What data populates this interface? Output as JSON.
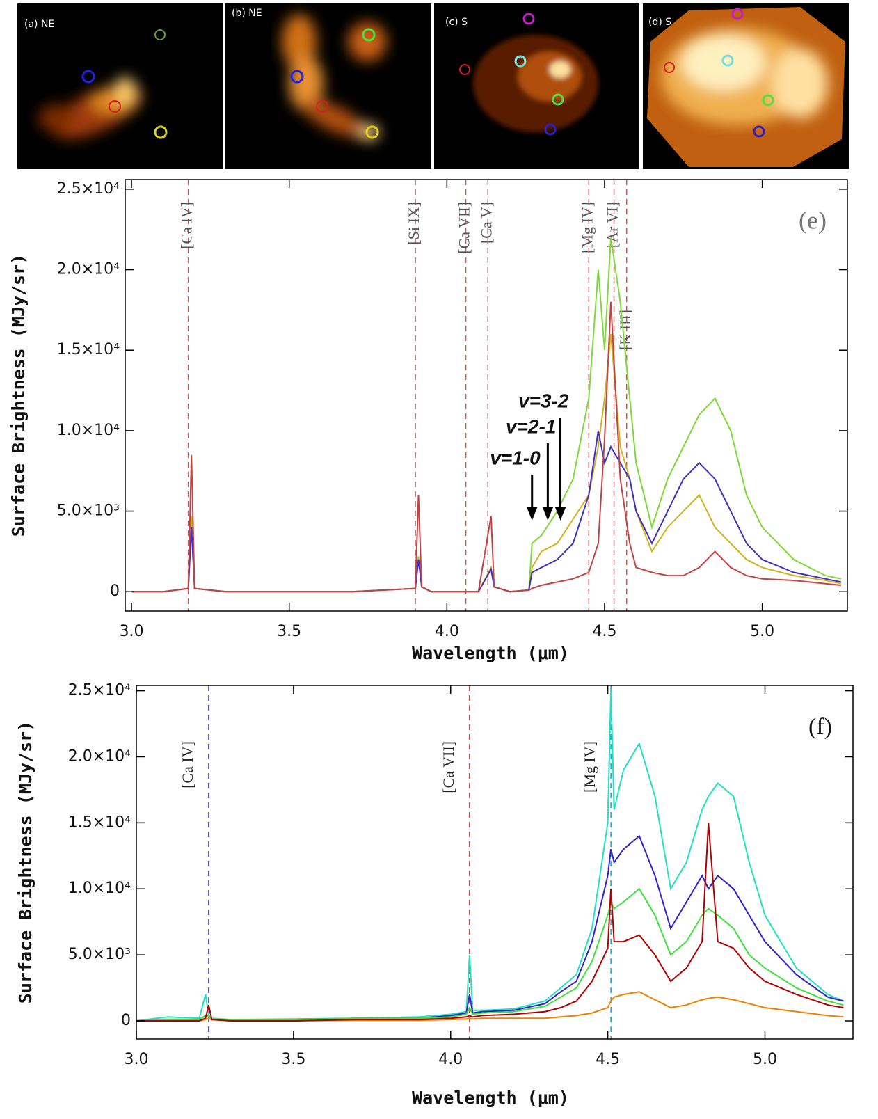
{
  "panels": [
    {
      "label": "(a) NE"
    },
    {
      "label": "(b) NE"
    },
    {
      "label": "(c) S"
    },
    {
      "label": "(d) S"
    }
  ],
  "chart_data": [
    {
      "type": "line",
      "panel_label": "(e)",
      "x_label": "Wavelength (μm)",
      "y_label": "Surface Brightness (MJy/sr)",
      "xlim": [
        2.98,
        5.27
      ],
      "ylim": [
        -1200,
        25600
      ],
      "xticks": [
        {
          "value": 3,
          "label": "3.0"
        },
        3.5,
        {
          "value": 4,
          "label": "4.0"
        },
        4.5,
        {
          "value": 5,
          "label": "5.0"
        }
      ],
      "yticks": [
        0,
        {
          "value": 5000,
          "label": "5.0×10³"
        },
        {
          "value": 10000,
          "label": "1.0×10⁴"
        },
        {
          "value": 15000,
          "label": "1.5×10⁴"
        },
        {
          "value": 20000,
          "label": "2.0×10⁴"
        },
        {
          "value": 25000,
          "label": "2.5×10⁴"
        }
      ],
      "x": [
        3.0,
        3.1,
        3.18,
        3.19,
        3.2,
        3.3,
        3.5,
        3.7,
        3.9,
        3.91,
        3.92,
        3.95,
        4.0,
        4.1,
        4.14,
        4.15,
        4.2,
        4.26,
        4.27,
        4.3,
        4.35,
        4.4,
        4.45,
        4.48,
        4.5,
        4.52,
        4.55,
        4.58,
        4.6,
        4.65,
        4.7,
        4.75,
        4.8,
        4.85,
        4.9,
        4.95,
        5.0,
        5.1,
        5.2,
        5.25
      ],
      "series": [
        {
          "color": "#7ed83a",
          "values": [
            0,
            0,
            200,
            4500,
            200,
            0,
            0,
            0,
            200,
            2200,
            300,
            0,
            0,
            0,
            1500,
            300,
            0,
            100,
            3000,
            3500,
            5000,
            7000,
            12000,
            20000,
            15000,
            22000,
            18000,
            12000,
            8000,
            4000,
            7000,
            9000,
            11000,
            12000,
            10000,
            6000,
            4000,
            2000,
            1000,
            800
          ]
        },
        {
          "color": "#d2b21e",
          "values": [
            0,
            0,
            200,
            4700,
            200,
            0,
            0,
            0,
            200,
            2100,
            300,
            0,
            0,
            0,
            1500,
            300,
            0,
            100,
            1500,
            2500,
            3000,
            4500,
            6000,
            9000,
            12000,
            16000,
            9000,
            7000,
            5000,
            2500,
            4000,
            5000,
            6000,
            4000,
            3000,
            2000,
            1500,
            1000,
            700,
            500
          ]
        },
        {
          "color": "#4030c0",
          "values": [
            0,
            0,
            200,
            4000,
            200,
            0,
            0,
            0,
            200,
            2000,
            300,
            0,
            0,
            0,
            1400,
            300,
            0,
            100,
            1200,
            1500,
            2000,
            3000,
            6000,
            10000,
            8000,
            9000,
            8000,
            7000,
            5000,
            3000,
            5000,
            7000,
            8000,
            7000,
            5000,
            3000,
            2000,
            1200,
            800,
            600
          ]
        },
        {
          "color": "#c04444",
          "values": [
            0,
            0,
            200,
            8500,
            200,
            0,
            0,
            0,
            200,
            6000,
            300,
            0,
            0,
            0,
            4700,
            300,
            0,
            100,
            200,
            400,
            600,
            800,
            1200,
            3000,
            9500,
            18000,
            7000,
            3000,
            1500,
            1200,
            1000,
            1000,
            1500,
            2500,
            1500,
            1000,
            800,
            700,
            500,
            400
          ]
        }
      ],
      "annotations": [
        {
          "text": "[Ca IV]",
          "x": 3.18
        },
        {
          "text": "[Si IX]",
          "x": 3.9
        },
        {
          "text": "[Ca VII]",
          "x": 4.06
        },
        {
          "text": "[Ca V]",
          "x": 4.13
        },
        {
          "text": "[Mg IV]",
          "x": 4.45
        },
        {
          "text": "[Ar VI]",
          "x": 4.53
        },
        {
          "text": "[K III]",
          "x": 4.57
        }
      ],
      "arrows": [
        {
          "text": "v=1-0",
          "x": 4.27
        },
        {
          "text": "v=2-1",
          "x": 4.32
        },
        {
          "text": "v=3-2",
          "x": 4.36
        }
      ]
    },
    {
      "type": "line",
      "panel_label": "(f)",
      "x_label": "Wavelength (μm)",
      "y_label": "Surface Brightness (MJy/sr)",
      "xlim": [
        3.0,
        5.28
      ],
      "ylim": [
        -1370,
        25400
      ],
      "xticks": [
        {
          "value": 3,
          "label": "3.0"
        },
        3.5,
        {
          "value": 4,
          "label": "4.0"
        },
        4.5,
        {
          "value": 5,
          "label": "5.0"
        }
      ],
      "yticks": [
        0,
        {
          "value": 5000,
          "label": "5.0×10³"
        },
        {
          "value": 10000,
          "label": "1.0×10⁴"
        },
        {
          "value": 15000,
          "label": "1.5×10⁴"
        },
        {
          "value": 20000,
          "label": "2.0×10⁴"
        },
        {
          "value": 25000,
          "label": "2.5×10⁴"
        }
      ],
      "x": [
        3.0,
        3.1,
        3.2,
        3.22,
        3.23,
        3.24,
        3.3,
        3.5,
        3.7,
        3.9,
        4.0,
        4.05,
        4.06,
        4.07,
        4.1,
        4.2,
        4.3,
        4.35,
        4.4,
        4.45,
        4.5,
        4.51,
        4.52,
        4.55,
        4.6,
        4.65,
        4.7,
        4.75,
        4.8,
        4.82,
        4.85,
        4.9,
        4.95,
        5.0,
        5.1,
        5.2,
        5.25
      ],
      "series": [
        {
          "color": "#22e0c0",
          "values": [
            0,
            300,
            200,
            2000,
            400,
            200,
            100,
            150,
            200,
            300,
            500,
            700,
            5000,
            800,
            800,
            900,
            1500,
            2500,
            3500,
            7000,
            15000,
            25000,
            16000,
            19000,
            21000,
            17000,
            10000,
            12000,
            16000,
            17000,
            18000,
            17000,
            12000,
            8000,
            4000,
            2000,
            1500
          ]
        },
        {
          "color": "#3020d0",
          "values": [
            0,
            100,
            100,
            400,
            400,
            100,
            100,
            100,
            200,
            200,
            400,
            600,
            2000,
            600,
            700,
            800,
            1300,
            2200,
            3000,
            6000,
            11000,
            13000,
            12000,
            13000,
            14000,
            11000,
            7000,
            9000,
            11000,
            10000,
            11000,
            10000,
            8000,
            6000,
            3500,
            1800,
            1500
          ]
        },
        {
          "color": "#40e040",
          "values": [
            0,
            100,
            100,
            400,
            400,
            100,
            100,
            100,
            200,
            200,
            300,
            500,
            1000,
            500,
            600,
            700,
            1100,
            1800,
            2500,
            4500,
            8000,
            9000,
            8500,
            9000,
            10000,
            8000,
            5000,
            6000,
            8000,
            8500,
            8000,
            7000,
            5000,
            4000,
            2500,
            1500,
            1200
          ]
        },
        {
          "color": "#f08000",
          "values": [
            0,
            0,
            0,
            100,
            200,
            100,
            0,
            0,
            50,
            50,
            100,
            150,
            200,
            150,
            200,
            200,
            200,
            300,
            400,
            600,
            1000,
            1500,
            1800,
            2000,
            2200,
            1600,
            1000,
            1200,
            1600,
            1700,
            1800,
            1600,
            1300,
            1000,
            700,
            400,
            300
          ]
        },
        {
          "color": "#b00000",
          "values": [
            0,
            0,
            0,
            200,
            1200,
            100,
            0,
            0,
            100,
            100,
            200,
            300,
            400,
            300,
            400,
            500,
            700,
            1000,
            1500,
            3000,
            5500,
            10000,
            6000,
            6000,
            6500,
            5000,
            3000,
            4000,
            6000,
            15000,
            6000,
            5500,
            4000,
            3000,
            2000,
            1200,
            1000
          ]
        }
      ],
      "annotations": [
        {
          "text": "[Ca IV]",
          "x": 3.23
        },
        {
          "text": "[Ca VII]",
          "x": 4.06
        },
        {
          "text": "[Mg IV]",
          "x": 4.51
        }
      ]
    }
  ]
}
